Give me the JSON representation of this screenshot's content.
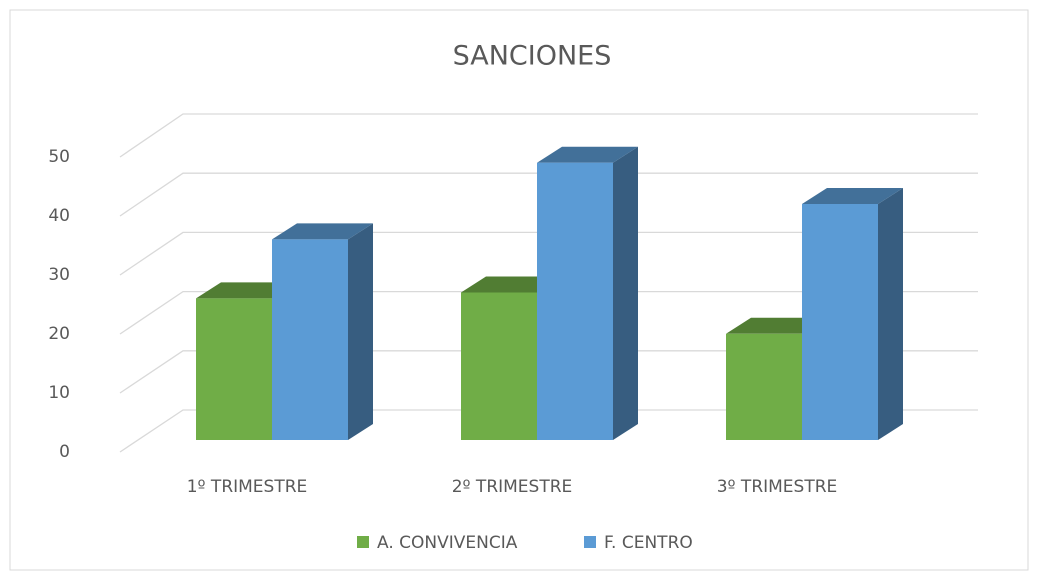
{
  "chart_data": {
    "type": "bar3d",
    "title": "SANCIONES",
    "categories": [
      "1º TRIMESTRE",
      "2º TRIMESTRE",
      "3º TRIMESTRE"
    ],
    "series": [
      {
        "name": "A. CONVIVENCIA",
        "color": "#70ad47",
        "values": [
          24,
          25,
          18
        ]
      },
      {
        "name": "F. CENTRO",
        "color": "#5b9bd5",
        "values": [
          34,
          47,
          40
        ]
      }
    ],
    "ylim": [
      0,
      50
    ],
    "yticks": [
      0,
      10,
      20,
      30,
      40,
      50
    ],
    "grid": true,
    "legend": "bottom"
  }
}
